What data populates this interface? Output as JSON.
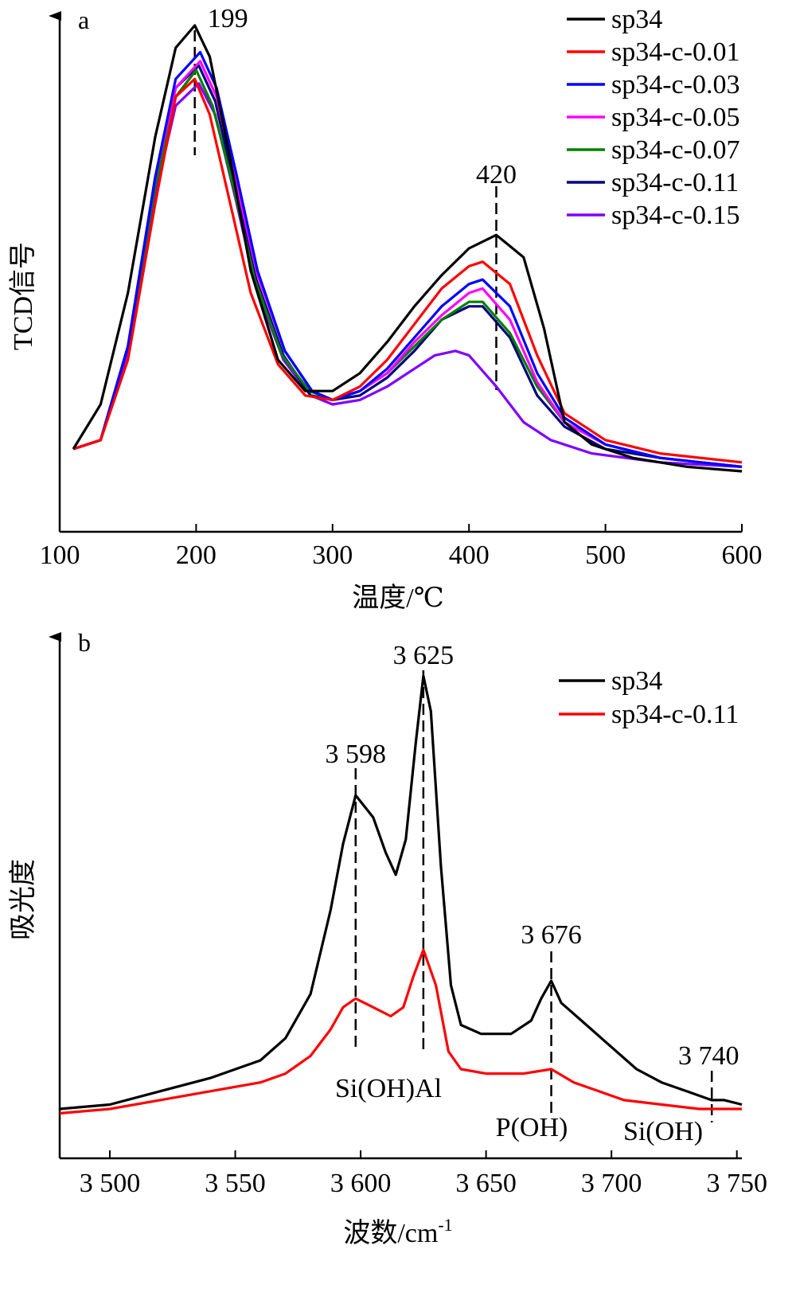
{
  "chart_data": [
    {
      "panel": "a",
      "type": "line",
      "xlabel": "温度/℃",
      "ylabel": "TCD信号",
      "xlim": [
        100,
        600
      ],
      "yticks_shown": false,
      "x_ticks": [
        "100",
        "200",
        "300",
        "400",
        "500",
        "600"
      ],
      "legend": {
        "position": "top-right"
      },
      "annotations": [
        {
          "text": "199",
          "x": 199,
          "dashed": true
        },
        {
          "text": "420",
          "x": 420,
          "dashed": true
        }
      ],
      "series": [
        {
          "name": "sp34",
          "color": "#000000",
          "x": [
            110,
            130,
            150,
            170,
            185,
            199,
            210,
            225,
            240,
            260,
            280,
            300,
            320,
            340,
            360,
            380,
            400,
            420,
            440,
            455,
            470,
            490,
            520,
            560,
            600
          ],
          "y": [
            0.05,
            0.15,
            0.4,
            0.75,
            0.95,
            1.0,
            0.93,
            0.7,
            0.45,
            0.25,
            0.18,
            0.18,
            0.22,
            0.29,
            0.37,
            0.44,
            0.5,
            0.53,
            0.48,
            0.32,
            0.11,
            0.06,
            0.03,
            0.01,
            0.0
          ]
        },
        {
          "name": "sp34-c-0.01",
          "color": "#ff0000",
          "x": [
            110,
            130,
            150,
            170,
            185,
            199,
            210,
            225,
            240,
            260,
            280,
            300,
            320,
            340,
            360,
            380,
            400,
            410,
            430,
            450,
            470,
            500,
            540,
            600
          ],
          "y": [
            0.05,
            0.07,
            0.25,
            0.6,
            0.84,
            0.88,
            0.8,
            0.6,
            0.4,
            0.24,
            0.17,
            0.16,
            0.19,
            0.25,
            0.33,
            0.41,
            0.46,
            0.47,
            0.42,
            0.26,
            0.13,
            0.07,
            0.04,
            0.02
          ]
        },
        {
          "name": "sp34-c-0.03",
          "color": "#0000ff",
          "x": [
            110,
            130,
            150,
            170,
            185,
            203,
            215,
            230,
            245,
            265,
            285,
            300,
            320,
            340,
            360,
            380,
            400,
            410,
            430,
            450,
            470,
            500,
            540,
            600
          ],
          "y": [
            0.05,
            0.07,
            0.28,
            0.66,
            0.88,
            0.94,
            0.86,
            0.66,
            0.45,
            0.27,
            0.18,
            0.16,
            0.18,
            0.23,
            0.3,
            0.37,
            0.42,
            0.43,
            0.37,
            0.22,
            0.12,
            0.06,
            0.03,
            0.01
          ]
        },
        {
          "name": "sp34-c-0.05",
          "color": "#ff00ff",
          "x": [
            110,
            130,
            150,
            170,
            185,
            203,
            215,
            230,
            245,
            265,
            285,
            300,
            320,
            340,
            360,
            380,
            400,
            410,
            430,
            450,
            470,
            500,
            540,
            600
          ],
          "y": [
            0.05,
            0.07,
            0.28,
            0.66,
            0.86,
            0.92,
            0.84,
            0.64,
            0.44,
            0.27,
            0.18,
            0.16,
            0.18,
            0.22,
            0.29,
            0.35,
            0.4,
            0.41,
            0.34,
            0.2,
            0.11,
            0.06,
            0.03,
            0.01
          ]
        },
        {
          "name": "sp34-c-0.07",
          "color": "#007f00",
          "x": [
            110,
            130,
            150,
            170,
            185,
            200,
            212,
            228,
            243,
            263,
            283,
            300,
            320,
            340,
            360,
            380,
            400,
            410,
            430,
            450,
            470,
            500,
            540,
            600
          ],
          "y": [
            0.05,
            0.07,
            0.28,
            0.64,
            0.84,
            0.9,
            0.82,
            0.63,
            0.43,
            0.26,
            0.18,
            0.16,
            0.18,
            0.22,
            0.28,
            0.34,
            0.38,
            0.38,
            0.31,
            0.19,
            0.11,
            0.06,
            0.03,
            0.01
          ]
        },
        {
          "name": "sp34-c-0.11",
          "color": "#00007f",
          "x": [
            110,
            130,
            150,
            170,
            185,
            202,
            214,
            229,
            244,
            264,
            284,
            300,
            320,
            340,
            360,
            380,
            400,
            410,
            430,
            450,
            470,
            500,
            540,
            600
          ],
          "y": [
            0.05,
            0.07,
            0.28,
            0.65,
            0.86,
            0.91,
            0.83,
            0.63,
            0.43,
            0.26,
            0.17,
            0.16,
            0.17,
            0.21,
            0.27,
            0.34,
            0.37,
            0.37,
            0.3,
            0.17,
            0.1,
            0.05,
            0.03,
            0.01
          ]
        },
        {
          "name": "sp34-c-0.15",
          "color": "#7f00ff",
          "x": [
            110,
            130,
            150,
            170,
            185,
            202,
            214,
            229,
            244,
            264,
            284,
            300,
            320,
            340,
            360,
            375,
            390,
            400,
            420,
            440,
            460,
            490,
            540,
            600
          ],
          "y": [
            0.05,
            0.07,
            0.27,
            0.62,
            0.82,
            0.87,
            0.8,
            0.61,
            0.41,
            0.25,
            0.17,
            0.15,
            0.16,
            0.19,
            0.23,
            0.26,
            0.27,
            0.26,
            0.19,
            0.11,
            0.07,
            0.04,
            0.02,
            0.01
          ]
        }
      ]
    },
    {
      "panel": "b",
      "type": "line",
      "xlabel": "波数/cm",
      "xlabel_superscript": "-1",
      "ylabel": "吸光度",
      "xlim": [
        3480,
        3752
      ],
      "yticks_shown": false,
      "x_ticks": [
        {
          "value": 3500,
          "label": "3 500"
        },
        {
          "value": 3550,
          "label": "3 550"
        },
        {
          "value": 3600,
          "label": "3 600"
        },
        {
          "value": 3650,
          "label": "3 650"
        },
        {
          "value": 3700,
          "label": "3 700"
        },
        {
          "value": 3750,
          "label": "3 750"
        }
      ],
      "legend": {
        "position": "top-right"
      },
      "peak_labels": [
        {
          "text": "3 598",
          "x": 3598
        },
        {
          "text": "3 625",
          "x": 3625
        },
        {
          "text": "3 676",
          "x": 3676
        },
        {
          "text": "3 740",
          "x": 3740
        }
      ],
      "band_labels": [
        "Si(OH)Al",
        "P(OH)",
        "Si(OH)"
      ],
      "series": [
        {
          "name": "sp34",
          "color": "#000000",
          "x": [
            3480,
            3500,
            3520,
            3540,
            3560,
            3570,
            3580,
            3588,
            3593,
            3598,
            3605,
            3610,
            3614,
            3618,
            3622,
            3625,
            3628,
            3632,
            3636,
            3640,
            3648,
            3660,
            3668,
            3672,
            3676,
            3680,
            3690,
            3700,
            3710,
            3720,
            3730,
            3740,
            3745,
            3752
          ],
          "y": [
            0.0,
            0.01,
            0.04,
            0.07,
            0.11,
            0.16,
            0.26,
            0.45,
            0.6,
            0.71,
            0.66,
            0.58,
            0.53,
            0.61,
            0.83,
            0.98,
            0.9,
            0.55,
            0.28,
            0.19,
            0.17,
            0.17,
            0.2,
            0.25,
            0.29,
            0.24,
            0.19,
            0.14,
            0.09,
            0.06,
            0.04,
            0.02,
            0.02,
            0.01
          ]
        },
        {
          "name": "sp34-c-0.11",
          "color": "#ff0000",
          "x": [
            3480,
            3500,
            3520,
            3540,
            3560,
            3570,
            3580,
            3588,
            3593,
            3598,
            3605,
            3612,
            3617,
            3621,
            3625,
            3630,
            3635,
            3640,
            3650,
            3665,
            3676,
            3685,
            3695,
            3705,
            3720,
            3735,
            3745,
            3752
          ],
          "y": [
            -0.01,
            0.0,
            0.02,
            0.04,
            0.06,
            0.08,
            0.12,
            0.18,
            0.23,
            0.25,
            0.23,
            0.21,
            0.23,
            0.3,
            0.36,
            0.28,
            0.13,
            0.09,
            0.08,
            0.08,
            0.09,
            0.06,
            0.04,
            0.02,
            0.01,
            0.0,
            0.0,
            0.0
          ]
        }
      ]
    }
  ]
}
